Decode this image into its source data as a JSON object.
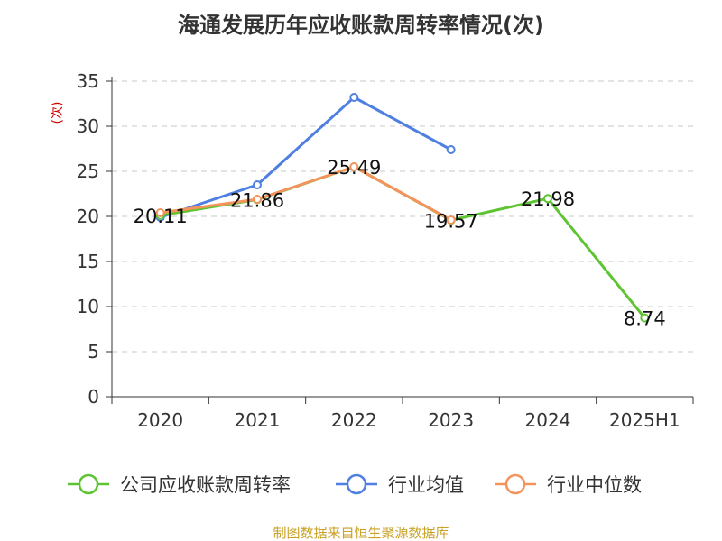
{
  "chart_data": {
    "type": "line",
    "title": "海通发展历年应收账款周转率情况(次)",
    "ylabel": "(次)",
    "xlabel": "",
    "categories": [
      "2020",
      "2021",
      "2022",
      "2023",
      "2024",
      "2025H1"
    ],
    "ylim": [
      0,
      35
    ],
    "yticks": [
      0,
      5,
      10,
      15,
      20,
      25,
      30,
      35
    ],
    "grid": true,
    "legend_position": "bottom",
    "series": [
      {
        "name": "公司应收账款周转率",
        "color": "#5ec432",
        "values": [
          20.11,
          21.86,
          25.49,
          19.57,
          21.98,
          8.74
        ],
        "labels": [
          "20.11",
          "21.86",
          "25.49",
          "19.57",
          "21.98",
          "8.74"
        ]
      },
      {
        "name": "行业均值",
        "color": "#4f7fe0",
        "values": [
          19.9,
          23.5,
          33.2,
          27.4,
          null,
          null
        ]
      },
      {
        "name": "行业中位数",
        "color": "#f4935b",
        "values": [
          20.4,
          21.9,
          25.5,
          19.6,
          null,
          null
        ]
      }
    ],
    "source": "制图数据来自恒生聚源数据库"
  }
}
